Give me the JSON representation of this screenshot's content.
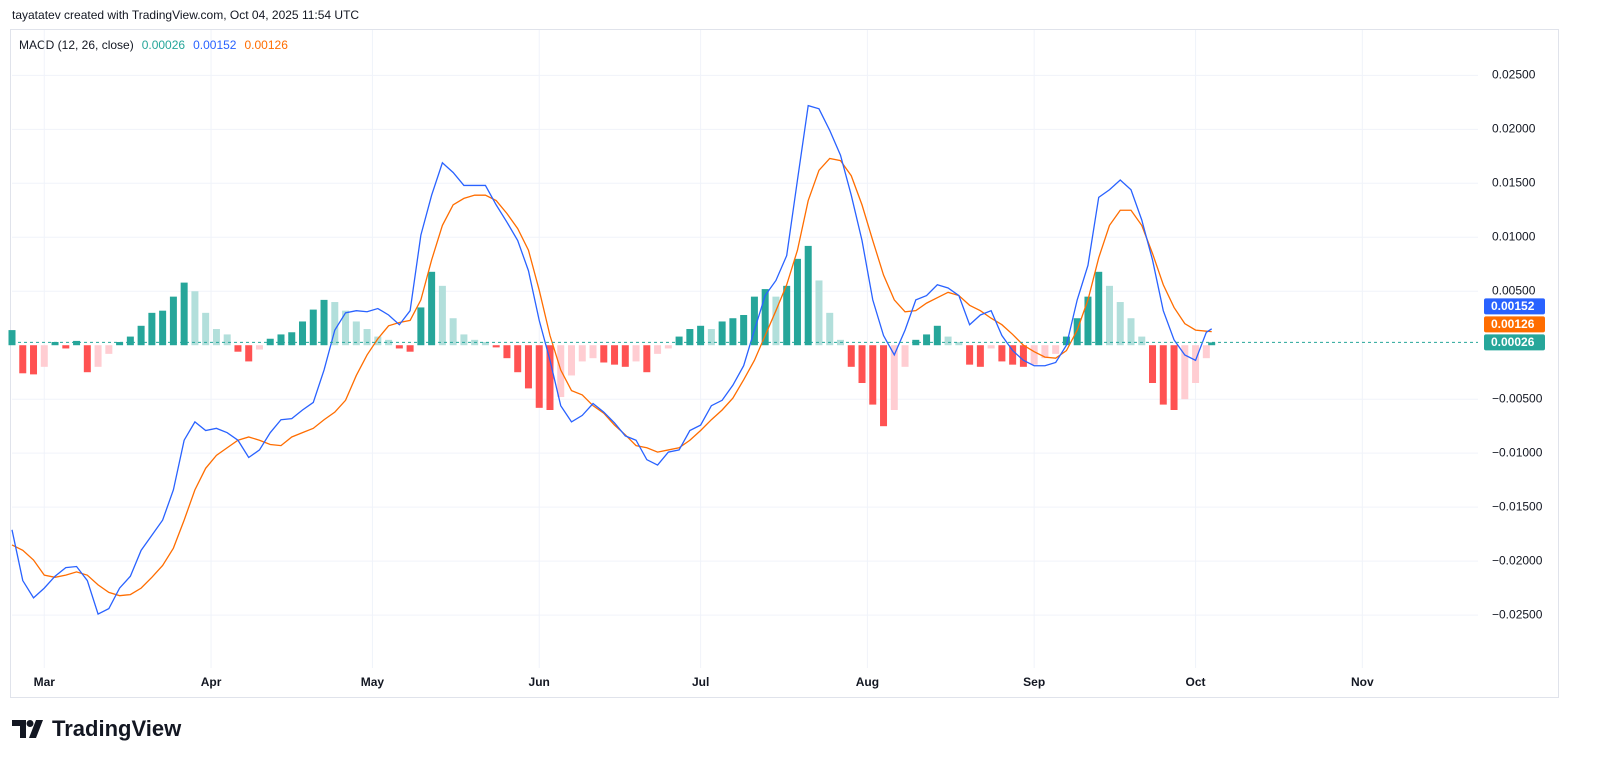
{
  "header": {
    "text": "tayatatev created with TradingView.com, Oct 04, 2025 11:54 UTC"
  },
  "footer": {
    "brand": "TradingView"
  },
  "chart_data": {
    "type": "macd",
    "title": "MACD (12, 26, close)",
    "x": [
      0,
      2,
      4,
      6,
      8,
      10,
      12,
      14,
      16,
      18,
      20,
      22,
      24,
      26,
      28,
      30,
      32,
      34,
      36,
      38,
      40,
      42,
      44,
      46,
      48,
      50,
      52,
      54,
      56,
      58,
      60,
      62,
      64,
      66,
      68,
      70,
      72,
      74,
      76,
      78,
      80,
      82,
      84,
      86,
      88,
      90,
      92,
      94,
      96,
      98,
      100,
      102,
      104,
      106,
      108,
      110,
      112,
      114,
      116,
      118,
      120,
      122,
      124,
      126,
      128,
      130,
      132,
      134,
      136,
      138,
      140,
      142,
      144,
      146,
      148,
      150,
      152,
      154,
      156,
      158,
      160,
      162,
      164,
      166,
      168,
      170,
      172,
      174,
      176,
      178,
      180,
      182,
      184,
      186,
      188,
      190,
      192,
      194,
      196,
      198,
      200,
      202,
      204,
      206,
      208,
      210,
      212,
      214,
      216,
      218,
      220,
      222,
      223
    ],
    "xlim": [
      0,
      272.5
    ],
    "xticks": [
      {
        "value": 6,
        "label": "Mar"
      },
      {
        "value": 37,
        "label": "Apr"
      },
      {
        "value": 67,
        "label": "May"
      },
      {
        "value": 98,
        "label": "Jun"
      },
      {
        "value": 128,
        "label": "Jul"
      },
      {
        "value": 159,
        "label": "Aug"
      },
      {
        "value": 190,
        "label": "Sep"
      },
      {
        "value": 220,
        "label": "Oct"
      },
      {
        "value": 251,
        "label": "Nov"
      }
    ],
    "ylim": [
      -0.0299,
      0.0292
    ],
    "yticks": [
      {
        "value": 0.025,
        "label": "0.02500"
      },
      {
        "value": 0.02,
        "label": "0.02000"
      },
      {
        "value": 0.015,
        "label": "0.01500"
      },
      {
        "value": 0.01,
        "label": "0.01000"
      },
      {
        "value": 0.005,
        "label": "0.00500"
      },
      {
        "value": -0.005,
        "label": "−0.00500"
      },
      {
        "value": -0.01,
        "label": "−0.01000"
      },
      {
        "value": -0.015,
        "label": "−0.01500"
      },
      {
        "value": -0.02,
        "label": "−0.02000"
      },
      {
        "value": -0.025,
        "label": "−0.02500"
      }
    ],
    "grid": true,
    "histogram": {
      "colors": {
        "positive_rising": "#26a69a",
        "positive_falling": "#b2dfdb",
        "negative_falling": "#ff5252",
        "negative_rising": "#ffcdd2"
      },
      "values": [
        0.0014,
        -0.0026,
        -0.0027,
        -0.002,
        0.0003,
        -0.0003,
        0.0004,
        -0.0025,
        -0.002,
        -0.0008,
        0.0003,
        0.0008,
        0.0018,
        0.003,
        0.0032,
        0.0045,
        0.0058,
        0.005,
        0.003,
        0.0015,
        0.001,
        -0.0006,
        -0.0015,
        -0.0004,
        0.0006,
        0.001,
        0.0012,
        0.0022,
        0.0033,
        0.0042,
        0.004,
        0.0032,
        0.0022,
        0.0015,
        0.0008,
        0.0005,
        -0.0003,
        -0.0006,
        0.0035,
        0.0068,
        0.0055,
        0.0025,
        0.001,
        0.0005,
        0.0003,
        -0.0002,
        -0.0012,
        -0.0025,
        -0.004,
        -0.0058,
        -0.006,
        -0.0048,
        -0.0028,
        -0.0015,
        -0.0012,
        -0.0016,
        -0.0018,
        -0.002,
        -0.0015,
        -0.0025,
        -0.0008,
        -0.0003,
        0.0008,
        0.0015,
        0.0018,
        0.0015,
        0.0022,
        0.0025,
        0.0028,
        0.0045,
        0.0052,
        0.0045,
        0.0055,
        0.008,
        0.0092,
        0.006,
        0.003,
        0.0005,
        -0.002,
        -0.0035,
        -0.0055,
        -0.0075,
        -0.006,
        -0.002,
        0.0005,
        0.001,
        0.0018,
        0.0008,
        0.0003,
        -0.0018,
        -0.002,
        -0.0003,
        -0.0015,
        -0.0018,
        -0.002,
        -0.0018,
        -0.0012,
        -0.0008,
        0.0008,
        0.0025,
        0.0045,
        0.0068,
        0.0055,
        0.004,
        0.0025,
        0.0008,
        -0.0035,
        -0.0055,
        -0.006,
        -0.005,
        -0.0035,
        -0.0012,
        0.00026
      ]
    },
    "macd": {
      "color": "#2962ff",
      "values": [
        -0.0171,
        -0.0218,
        -0.0234,
        -0.0225,
        -0.0214,
        -0.0206,
        -0.0205,
        -0.0218,
        -0.0249,
        -0.0244,
        -0.0225,
        -0.0214,
        -0.019,
        -0.0176,
        -0.0162,
        -0.0134,
        -0.0088,
        -0.0071,
        -0.0079,
        -0.0077,
        -0.0081,
        -0.0088,
        -0.0104,
        -0.0097,
        -0.0081,
        -0.0069,
        -0.0068,
        -0.006,
        -0.0053,
        -0.0023,
        0.0014,
        0.003,
        0.0032,
        0.0031,
        0.0034,
        0.0028,
        0.0019,
        0.0032,
        0.0102,
        0.0139,
        0.0169,
        0.016,
        0.0148,
        0.0148,
        0.0148,
        0.013,
        0.0114,
        0.0097,
        0.0069,
        0.0023,
        -0.0014,
        -0.0056,
        -0.0071,
        -0.0065,
        -0.0054,
        -0.0062,
        -0.0072,
        -0.0084,
        -0.0088,
        -0.0106,
        -0.0111,
        -0.0099,
        -0.0097,
        -0.0079,
        -0.0074,
        -0.0056,
        -0.0051,
        -0.0037,
        -0.0019,
        0.0014,
        0.0046,
        0.006,
        0.0083,
        0.0153,
        0.0222,
        0.0219,
        0.0199,
        0.0176,
        0.0139,
        0.0097,
        0.0042,
        0.0009,
        -0.0009,
        0.0014,
        0.0042,
        0.0046,
        0.0056,
        0.0053,
        0.0046,
        0.0019,
        0.0028,
        0.0032,
        0.0009,
        -0.0005,
        -0.0014,
        -0.0019,
        -0.0019,
        -0.0016,
        0,
        0.0042,
        0.0074,
        0.0137,
        0.0144,
        0.0153,
        0.0144,
        0.0116,
        0.0079,
        0.0032,
        0.0005,
        -0.0009,
        -0.0014,
        0.0012,
        0.00152
      ]
    },
    "signal": {
      "color": "#ff6d00",
      "values": [
        -0.0185,
        -0.019,
        -0.0199,
        -0.0213,
        -0.0215,
        -0.0213,
        -0.021,
        -0.0213,
        -0.0222,
        -0.0229,
        -0.0232,
        -0.0231,
        -0.0225,
        -0.0215,
        -0.0204,
        -0.0188,
        -0.0162,
        -0.0134,
        -0.0114,
        -0.0102,
        -0.0095,
        -0.0088,
        -0.0085,
        -0.0088,
        -0.0092,
        -0.0093,
        -0.0085,
        -0.0081,
        -0.0077,
        -0.0069,
        -0.0062,
        -0.0051,
        -0.0028,
        -0.0009,
        0.0006,
        0.0018,
        0.0021,
        0.0023,
        0.0042,
        0.0079,
        0.0111,
        0.013,
        0.0136,
        0.0139,
        0.0139,
        0.0134,
        0.0122,
        0.0108,
        0.0088,
        0.0051,
        0.0009,
        -0.0023,
        -0.0042,
        -0.0046,
        -0.0056,
        -0.0063,
        -0.0074,
        -0.0083,
        -0.0093,
        -0.0095,
        -0.0099,
        -0.0097,
        -0.0095,
        -0.0088,
        -0.0079,
        -0.0069,
        -0.006,
        -0.0049,
        -0.0032,
        -0.0014,
        0.0009,
        0.0032,
        0.0056,
        0.0088,
        0.0134,
        0.0162,
        0.0173,
        0.0171,
        0.0157,
        0.013,
        0.0097,
        0.0065,
        0.0042,
        0.0031,
        0.0032,
        0.0039,
        0.0044,
        0.0049,
        0.0046,
        0.0037,
        0.0032,
        0.0025,
        0.0019,
        0.001,
        0,
        -0.0006,
        -0.0011,
        -0.0012,
        -0.0005,
        0.0014,
        0.0042,
        0.0081,
        0.0111,
        0.0125,
        0.0125,
        0.0111,
        0.0085,
        0.0056,
        0.0035,
        0.002,
        0.0014,
        0.0013,
        0.00126
      ]
    }
  }
}
